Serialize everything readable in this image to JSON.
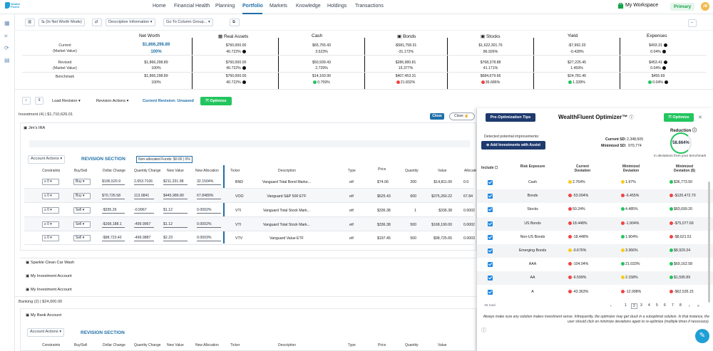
{
  "app": {
    "logo_text": "Wealth Fluent",
    "workspace": "My Workspace",
    "env_badge": "Primary",
    "avatar": "JB"
  },
  "nav": [
    "Home",
    "Financial Health",
    "Planning",
    "Portfolio",
    "Markets",
    "Knowledge",
    "Holdings",
    "Transactions"
  ],
  "toolbar": {
    "b1": "(In Net Worth Mode)",
    "b2": "Descriptive Information",
    "b3": "Go To Column Group..."
  },
  "summary": {
    "headers": [
      "Net Worth",
      "Real Assets",
      "Cash",
      "Bonds",
      "Stocks",
      "Yield",
      "Expenses"
    ],
    "row_labels": [
      [
        "Current",
        "(Market Value)"
      ],
      [
        "Revised",
        "(Market Value)"
      ],
      [
        "Benchmark",
        ""
      ]
    ],
    "current": [
      [
        "$1,866,298.89",
        "100%"
      ],
      [
        "$760,000.00",
        "40.722%"
      ],
      [
        "$65,755.43",
        "3.523%"
      ],
      [
        "-$581,758.31",
        "-31.172%"
      ],
      [
        "$1,622,301.76",
        "86.926%"
      ],
      [
        "-$7,992.33",
        "-0.428%"
      ],
      [
        "$493.31",
        "0.04%"
      ]
    ],
    "revised": [
      [
        "$1,866,298.89",
        "100%"
      ],
      [
        "$760,000.00",
        "40.722%"
      ],
      [
        "$50,939.43",
        "2.729%"
      ],
      [
        "$286,980.81",
        "15.377%"
      ],
      [
        "$768,378.88",
        "41.171%"
      ],
      [
        "$27,225.45",
        "1.459%"
      ],
      [
        "$453.41",
        "0.04%"
      ]
    ],
    "benchmark": [
      [
        "$1,866,298.89",
        "100%"
      ],
      [
        "$760,000.00",
        "40.722%"
      ],
      [
        "$14,169.90",
        "0.759%"
      ],
      [
        "$407,453.31",
        "21.832%"
      ],
      [
        "$684,679.66",
        "36.686%"
      ],
      [
        "$24,781.46",
        "1.328%"
      ],
      [
        "$455.69",
        "0.04%"
      ]
    ]
  },
  "revision": {
    "load": "Load Revision",
    "actions": "Revision Actions",
    "current": "Current Revision: Unsaved",
    "optimize": "Optimize"
  },
  "investment": {
    "summary": "Investment (4) | $1,710,626.01",
    "close_btn": "Close",
    "close2": "Close",
    "account": "Jim's IRA",
    "account_actions": "Account Actions",
    "revision_section": "REVISION SECTION",
    "non_alloc": "Non-allocated Funds: $0.00 | 0%",
    "columns": [
      "Constraints",
      "Buy/Sell",
      "Dollar Change",
      "Quantity Change",
      "New Value",
      "New Allocation",
      "Ticker",
      "Description",
      "Type",
      "Price",
      "Quantity",
      "Value",
      "Allocation"
    ],
    "rows": [
      {
        "c": "≥ 0",
        "bs": "Buy",
        "dc": "$196,520.9",
        "qc": "2,653.7166",
        "nv": "$211,331.98",
        "na": "32.1504%",
        "t": "BND",
        "d": "Vanguard Total Bond Marke...",
        "ty": "etf",
        "p": "$74.06",
        "q": "200",
        "v": "$14,811.00",
        "a": "0.0"
      },
      {
        "c": "≥ 0",
        "bs": "Buy",
        "dc": "$70,726.58",
        "qc": "113.0841",
        "nv": "$445,986.80",
        "na": "67.8489%",
        "t": "VOO",
        "d": "Vanguard S&P 500 ETF",
        "ty": "etf",
        "p": "$625.43",
        "q": "600",
        "v": "$375,260.22",
        "a": "67.84"
      },
      {
        "c": "≥ 0",
        "bs": "Sell",
        "dc": "-$335.26",
        "qc": "-0.9967",
        "nv": "$1.12",
        "na": "0.0002%",
        "t": "VTI",
        "d": "Vanguard Total Stock Mark...",
        "ty": "etf",
        "p": "$336.38",
        "q": "1",
        "v": "$336.38",
        "a": "0.0002"
      },
      {
        "c": "≥ 0",
        "bs": "Sell",
        "dc": "-$168,188.1",
        "qc": "-499.9967",
        "nv": "$1.12",
        "na": "0.0002%",
        "t": "VTI",
        "d": "Vanguard Total Stock Mark...",
        "ty": "etf",
        "p": "$336.38",
        "q": "500",
        "v": "$168,190.00",
        "a": "0.0002"
      },
      {
        "c": "≥ 0",
        "bs": "Sell",
        "dc": "-$98,723.42",
        "qc": "-499.9887",
        "nv": "$2.23",
        "na": "0.0003%",
        "t": "VTV",
        "d": "Vanguard Value ETF",
        "ty": "etf",
        "p": "$197.45",
        "q": "500",
        "v": "$98,725.65",
        "a": "0.0003"
      }
    ],
    "other_accounts": [
      "Sparkle Clean Car Wash",
      "My Investment Account",
      "My Investment Account"
    ],
    "banking": "Banking (2) | $24,000.00",
    "bank_account": "My Bank Account"
  },
  "optimizer": {
    "pre_btn": "Pre-Optimization Tips",
    "title": "WealthFluent Optimizer™",
    "optimize": "Optimize",
    "detected": "Detected potential improvements:",
    "add_btn": "Add Investments with Assist",
    "current_sd_label": "Current SD:",
    "current_sd": "2,348,505",
    "min_sd_label": "Minimized SD:",
    "min_sd": "970,774",
    "reduction_label": "Reduction",
    "reduction": "58.664%",
    "reduction_note": "in deviations from your benchmark",
    "columns": [
      "Include",
      "Risk Exposure",
      "Current Deviation",
      "Minimized Deviation",
      "Minimized Deviation ($)"
    ],
    "rows": [
      {
        "n": "Cash",
        "c": "2.764%",
        "cc": "y",
        "m": "1.97%",
        "mc": "y",
        "d": "$36,773.50",
        "dc": "g"
      },
      {
        "n": "Bonds",
        "c": "-53.004%",
        "cc": "r",
        "m": "-6.455%",
        "mc": "r",
        "d": "-$120,472.70",
        "dc": "r"
      },
      {
        "n": "Stocks",
        "c": "50.24%",
        "cc": "r",
        "m": "4.485%",
        "mc": "g",
        "d": "$83,699.20",
        "dc": "g"
      },
      {
        "n": "US Bonds",
        "c": "18.448%",
        "cc": "r",
        "m": "-1.904%",
        "mc": "r",
        "d": "-$75,077.69",
        "dc": "r"
      },
      {
        "n": "Non-US Bonds",
        "c": "-18.448%",
        "cc": "r",
        "m": "1.904%",
        "mc": "g",
        "d": "-$8,621.51",
        "dc": "r"
      },
      {
        "n": "Emerging Bonds",
        "c": "-0.676%",
        "cc": "y",
        "m": "3.366%",
        "mc": "y",
        "d": "$8,929.34",
        "dc": "g"
      },
      {
        "n": "AAA",
        "c": "-104.04%",
        "cc": "r",
        "m": "21.033%",
        "mc": "g",
        "d": "$69,162.58",
        "dc": "g"
      },
      {
        "n": "AA",
        "c": "-6.599%",
        "cc": "r",
        "m": "2.158%",
        "mc": "y",
        "d": "$1,595.89",
        "dc": "g"
      },
      {
        "n": "A",
        "c": "-43.363%",
        "cc": "r",
        "m": "-12.998%",
        "mc": "r",
        "d": "-$62,535.15",
        "dc": "r"
      }
    ],
    "total": "36 total",
    "pages": [
      "1",
      "2",
      "3",
      "4",
      "5",
      "6",
      "7",
      "8"
    ],
    "footnote": "Always make sure any solution makes investment sense. Infrequently, the optimizer may get stuck in a suboptimal solution. In that instance, the user should click on minimize deviations again to re-optimize (multiple times if necessary)."
  },
  "colors": {
    "accent": "#1e6fa8",
    "green": "#22c55e",
    "red": "#ef4444",
    "yellow": "#facc15",
    "navy": "#1e3a6e"
  }
}
